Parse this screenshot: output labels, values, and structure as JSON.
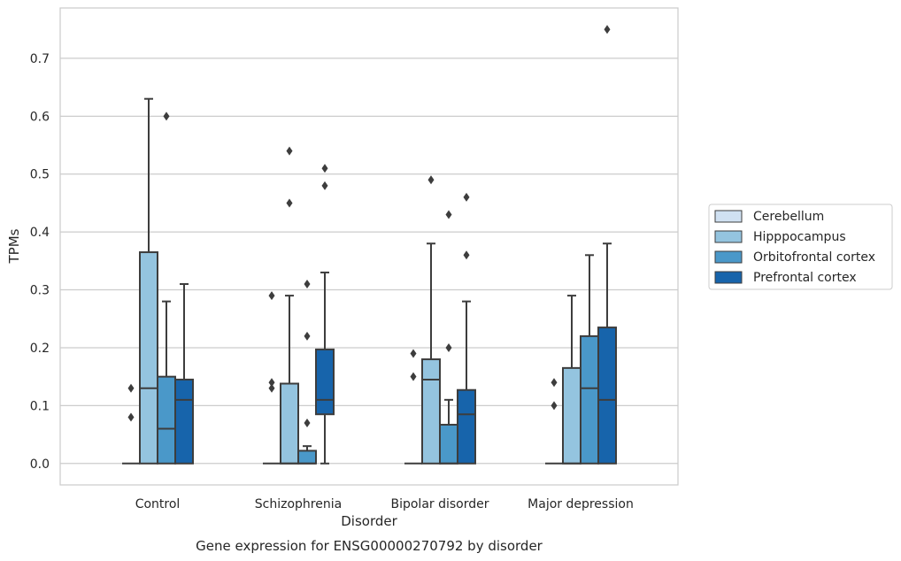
{
  "chart_data": {
    "type": "box",
    "caption": "Gene expression for ENSG00000270792 by disorder",
    "xlabel": "Disorder",
    "ylabel": "TPMs",
    "ylim": [
      -0.037,
      0.787
    ],
    "yticks": [
      0.0,
      0.1,
      0.2,
      0.3,
      0.4,
      0.5,
      0.6,
      0.7
    ],
    "ytick_labels": [
      "0.0",
      "0.1",
      "0.2",
      "0.3",
      "0.4",
      "0.5",
      "0.6",
      "0.7"
    ],
    "grid": "horizontal",
    "legend_position": "right",
    "categories": [
      "Control",
      "Schizophrenia",
      "Bipolar disorder",
      "Major depression"
    ],
    "series": [
      {
        "name": "Cerebellum",
        "color": "#d0e1f2",
        "boxes": [
          {
            "q1": 0,
            "median": 0,
            "q3": 0,
            "whisker_low": 0,
            "whisker_high": 0,
            "outliers": [
              0.13,
              0.08
            ]
          },
          {
            "q1": 0,
            "median": 0,
            "q3": 0,
            "whisker_low": 0,
            "whisker_high": 0,
            "outliers": [
              0.29,
              0.14,
              0.13
            ]
          },
          {
            "q1": 0,
            "median": 0,
            "q3": 0,
            "whisker_low": 0,
            "whisker_high": 0,
            "outliers": [
              0.19,
              0.15
            ]
          },
          {
            "q1": 0,
            "median": 0,
            "q3": 0,
            "whisker_low": 0,
            "whisker_high": 0,
            "outliers": [
              0.14,
              0.1
            ]
          }
        ]
      },
      {
        "name": "Hipppocampus",
        "color": "#94c4df",
        "boxes": [
          {
            "q1": 0,
            "median": 0.13,
            "q3": 0.365,
            "whisker_low": 0,
            "whisker_high": 0.63,
            "outliers": []
          },
          {
            "q1": 0,
            "median": 0,
            "q3": 0.138,
            "whisker_low": 0,
            "whisker_high": 0.29,
            "outliers": [
              0.54,
              0.45
            ]
          },
          {
            "q1": 0,
            "median": 0.145,
            "q3": 0.18,
            "whisker_low": 0,
            "whisker_high": 0.38,
            "outliers": [
              0.49
            ]
          },
          {
            "q1": 0,
            "median": 0,
            "q3": 0.165,
            "whisker_low": 0,
            "whisker_high": 0.29,
            "outliers": []
          }
        ]
      },
      {
        "name": "Orbitofrontal cortex",
        "color": "#4a98c9",
        "boxes": [
          {
            "q1": 0,
            "median": 0.06,
            "q3": 0.15,
            "whisker_low": 0,
            "whisker_high": 0.28,
            "outliers": [
              0.6
            ]
          },
          {
            "q1": 0,
            "median": 0,
            "q3": 0.022,
            "whisker_low": 0,
            "whisker_high": 0.03,
            "outliers": [
              0.31,
              0.22,
              0.07
            ]
          },
          {
            "q1": 0,
            "median": 0,
            "q3": 0.067,
            "whisker_low": 0,
            "whisker_high": 0.11,
            "outliers": [
              0.43,
              0.2
            ]
          },
          {
            "q1": 0,
            "median": 0.13,
            "q3": 0.22,
            "whisker_low": 0,
            "whisker_high": 0.36,
            "outliers": []
          }
        ]
      },
      {
        "name": "Prefrontal cortex",
        "color": "#1764ab",
        "boxes": [
          {
            "q1": 0,
            "median": 0.11,
            "q3": 0.145,
            "whisker_low": 0,
            "whisker_high": 0.31,
            "outliers": []
          },
          {
            "q1": 0.085,
            "median": 0.11,
            "q3": 0.197,
            "whisker_low": 0,
            "whisker_high": 0.33,
            "outliers": [
              0.51,
              0.48
            ]
          },
          {
            "q1": 0,
            "median": 0.085,
            "q3": 0.127,
            "whisker_low": 0,
            "whisker_high": 0.28,
            "outliers": [
              0.46,
              0.36
            ]
          },
          {
            "q1": 0,
            "median": 0.11,
            "q3": 0.235,
            "whisker_low": 0,
            "whisker_high": 0.38,
            "outliers": [
              0.75
            ]
          }
        ]
      }
    ]
  }
}
